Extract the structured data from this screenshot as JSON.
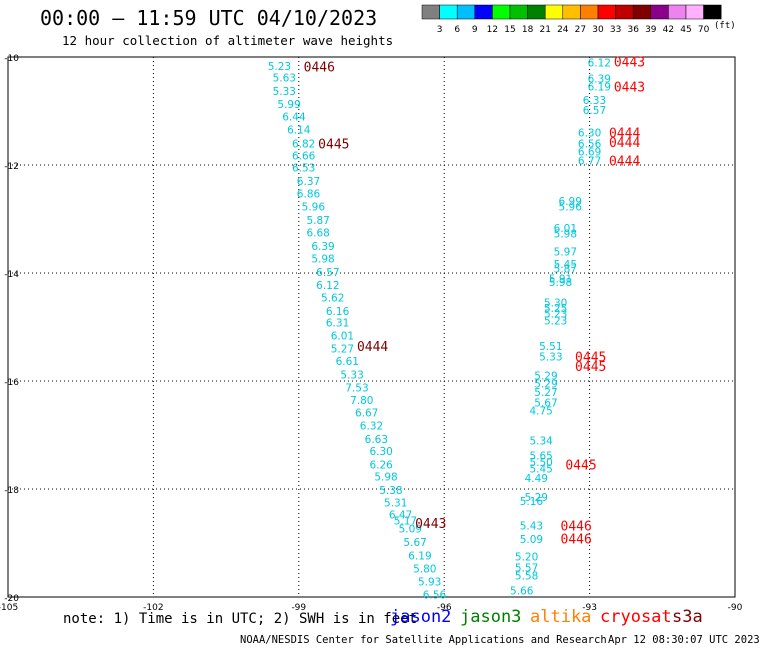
{
  "header": {
    "title": "00:00 — 11:59 UTC 04/10/2023",
    "subtitle": "12 hour collection of altimeter wave heights"
  },
  "legend": {
    "labels": [
      "3",
      "6",
      "9",
      "12",
      "15",
      "18",
      "21",
      "24",
      "27",
      "30",
      "33",
      "36",
      "39",
      "42",
      "45",
      "70"
    ],
    "unit": "(ft)",
    "colors": [
      "#808080",
      "#00ffff",
      "#00bfff",
      "#0000ff",
      "#00ff00",
      "#00c000",
      "#008000",
      "#ffff00",
      "#ffbf00",
      "#ff8000",
      "#ff0000",
      "#c00000",
      "#800000",
      "#8b008b",
      "#ee82ee",
      "#ffb0ff",
      "#000000"
    ]
  },
  "note": "note: 1) Time is in UTC; 2) SWH is in feet",
  "satellites": [
    {
      "name": "jason2",
      "color": "#0000ff"
    },
    {
      "name": "jason3",
      "color": "#008000"
    },
    {
      "name": "altika",
      "color": "#ff8000"
    },
    {
      "name": "cryosat",
      "color": "#ff0000"
    },
    {
      "name": "s3a",
      "color": "#800000"
    }
  ],
  "footer": {
    "credit": "NOAA/NESDIS Center for Satellite Applications and Research",
    "timestamp": "Apr 12 08:30:07 UTC 2023"
  },
  "chart_data": {
    "type": "scatter",
    "xlim": [
      -105,
      -90
    ],
    "ylim": [
      -20,
      -10
    ],
    "xticks": [
      "-105",
      "-102",
      "-99",
      "-96",
      "-93",
      "-90"
    ],
    "yticks": [
      "-10",
      "-12",
      "-14",
      "-16",
      "-18",
      "-20"
    ],
    "grid": true,
    "track_a": {
      "color": "#00c8dc",
      "x": [
        -99.4,
        -99.3,
        -99.3,
        -99.2,
        -99.1,
        -99.0,
        -98.9,
        -98.9,
        -98.9,
        -98.8,
        -98.8,
        -98.7,
        -98.6,
        -98.6,
        -98.5,
        -98.5,
        -98.4,
        -98.4,
        -98.3,
        -98.2,
        -98.2,
        -98.1,
        -98.1,
        -98.0,
        -97.9,
        -97.8,
        -97.7,
        -97.6,
        -97.5,
        -97.4,
        -97.3,
        -97.3,
        -97.2,
        -97.1,
        -97.0,
        -96.9,
        -96.8,
        -96.7,
        -96.6,
        -96.5,
        -96.4,
        -96.3,
        -96.2
      ],
      "y": [
        -10.17,
        -10.38,
        -10.63,
        -10.87,
        -11.1,
        -11.34,
        -11.6,
        -11.82,
        -12.05,
        -12.3,
        -12.53,
        -12.77,
        -13.02,
        -13.25,
        -13.5,
        -13.73,
        -13.98,
        -14.22,
        -14.45,
        -14.7,
        -14.92,
        -15.16,
        -15.4,
        -15.63,
        -15.88,
        -16.12,
        -16.35,
        -16.58,
        -16.82,
        -17.07,
        -17.3,
        -17.55,
        -17.77,
        -18.02,
        -18.25,
        -18.47,
        -18.58,
        -18.73,
        -18.98,
        -19.23,
        -19.47,
        -19.71,
        -19.95
      ],
      "labels": [
        "5.23",
        "5.63",
        "5.33",
        "5.99",
        "6.44",
        "6.14",
        "6.82",
        "6.66",
        "6.53",
        "6.37",
        "6.86",
        "5.96",
        "5.87",
        "6.68",
        "6.39",
        "5.98",
        "6.57",
        "6.12",
        "5.62",
        "6.16",
        "6.31",
        "6.01",
        "5.27",
        "6.61",
        "5.33",
        "7.53",
        "7.80",
        "6.67",
        "6.32",
        "6.63",
        "6.30",
        "6.26",
        "5.98",
        "5.38",
        "5.31",
        "6.47",
        "5.17",
        "5.09",
        "5.67",
        "6.19",
        "5.80",
        "5.93",
        "6.56"
      ]
    },
    "track_b": {
      "color": "#00c8dc",
      "x": [
        -92.8,
        -92.8,
        -92.8,
        -92.9,
        -92.9,
        -93.0,
        -93.0,
        -93.0,
        -93.0,
        -93.4,
        -93.4,
        -93.5,
        -93.5,
        -93.5,
        -93.5,
        -93.5,
        -93.6,
        -93.6,
        -93.7,
        -93.7,
        -93.7,
        -93.7,
        -93.8,
        -93.8,
        -93.9,
        -93.9,
        -93.9,
        -93.9,
        -94.0,
        -94.0,
        -94.0,
        -94.0,
        -94.0,
        -94.1,
        -94.1,
        -94.2,
        -94.2,
        -94.2,
        -94.3,
        -94.3,
        -94.3,
        -94.4
      ],
      "y": [
        -10.1,
        -10.4,
        -10.55,
        -10.8,
        -10.98,
        -11.4,
        -11.6,
        -11.75,
        -11.92,
        -12.67,
        -12.77,
        -13.17,
        -13.27,
        -13.6,
        -13.83,
        -13.92,
        -14.1,
        -14.17,
        -14.55,
        -14.65,
        -14.75,
        -14.88,
        -15.35,
        -15.55,
        -15.9,
        -16.05,
        -16.2,
        -16.4,
        -16.55,
        -17.1,
        -17.38,
        -17.5,
        -17.62,
        -17.8,
        -18.15,
        -18.22,
        -18.68,
        -18.93,
        -19.25,
        -19.45,
        -19.6,
        -19.88
      ],
      "labels": [
        "6.12",
        "6.39",
        "6.19",
        "6.33",
        "6.57",
        "6.30",
        "6.56",
        "6.69",
        "6.77",
        "6.99",
        "5.96",
        "6.01",
        "5.98",
        "5.97",
        "5.45",
        "5.87",
        "5.91",
        "5.98",
        "5.30",
        "5.25",
        "5.23",
        "5.23",
        "5.51",
        "5.33",
        "5.29",
        "5.29",
        "5.27",
        "5.67",
        "4.75",
        "5.34",
        "5.65",
        "5.50",
        "5.45",
        "4.49",
        "5.29",
        "5.16",
        "5.43",
        "5.09",
        "5.20",
        "5.57",
        "5.58",
        "5.66"
      ]
    },
    "time_markers": [
      {
        "text": "0446",
        "x": -98.9,
        "y": -10.18,
        "color": "#800000"
      },
      {
        "text": "0445",
        "x": -98.6,
        "y": -11.6,
        "color": "#800000"
      },
      {
        "text": "0444",
        "x": -97.8,
        "y": -15.35,
        "color": "#800000"
      },
      {
        "text": "0443",
        "x": -96.6,
        "y": -18.63,
        "color": "#800000"
      },
      {
        "text": "0443",
        "x": -92.5,
        "y": -10.08,
        "color": "#ff0000"
      },
      {
        "text": "0443",
        "x": -92.5,
        "y": -10.55,
        "color": "#ff0000"
      },
      {
        "text": "0444",
        "x": -92.6,
        "y": -11.4,
        "color": "#ff0000"
      },
      {
        "text": "0444",
        "x": -92.6,
        "y": -11.57,
        "color": "#ff0000"
      },
      {
        "text": "0444",
        "x": -92.6,
        "y": -11.92,
        "color": "#ff0000"
      },
      {
        "text": "0445",
        "x": -93.3,
        "y": -15.55,
        "color": "#ff0000"
      },
      {
        "text": "0445",
        "x": -93.3,
        "y": -15.72,
        "color": "#ff0000"
      },
      {
        "text": "0445",
        "x": -93.5,
        "y": -17.55,
        "color": "#ff0000"
      },
      {
        "text": "0446",
        "x": -93.6,
        "y": -18.68,
        "color": "#ff0000"
      },
      {
        "text": "0446",
        "x": -93.6,
        "y": -18.92,
        "color": "#ff0000"
      }
    ]
  }
}
